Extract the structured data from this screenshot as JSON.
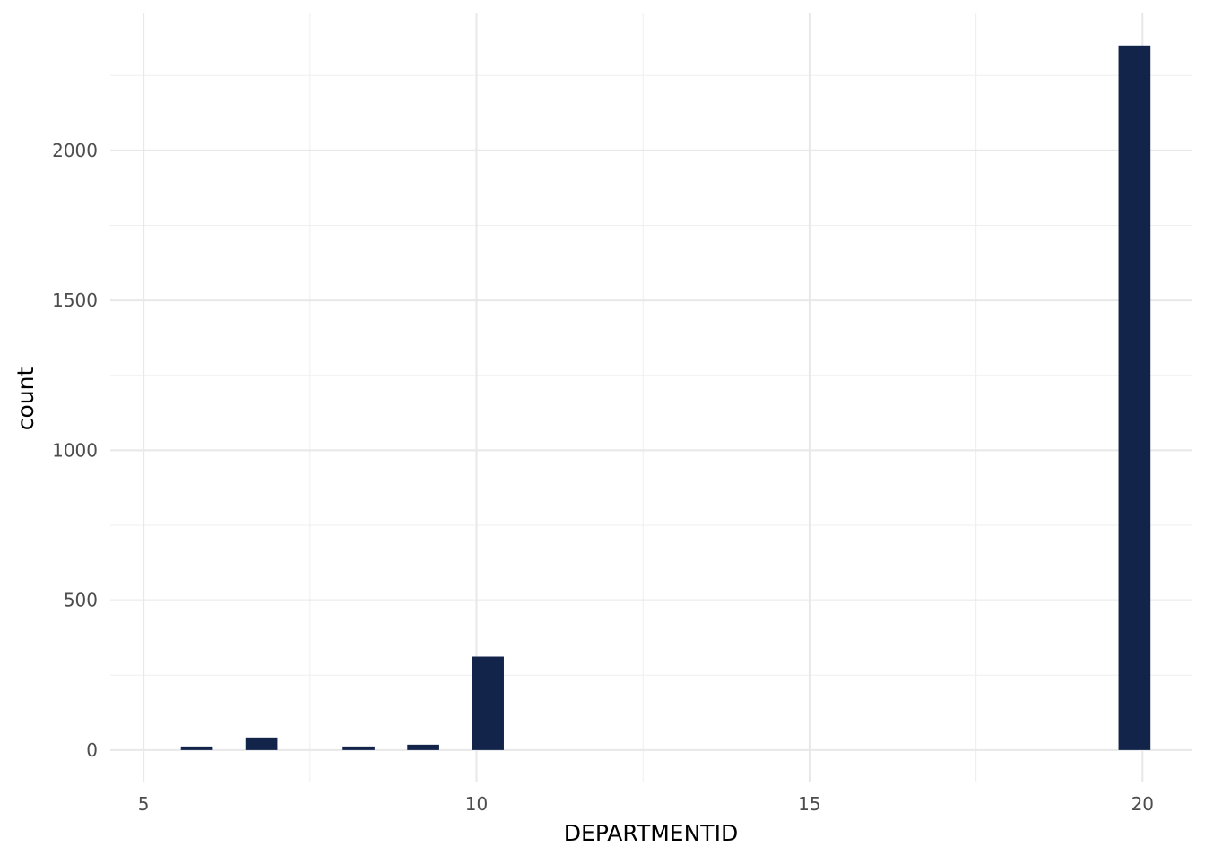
{
  "chart_data": {
    "type": "bar",
    "title": "",
    "xlabel": "DEPARTMENTID",
    "ylabel": "count",
    "xlim": [
      4.5,
      20.75
    ],
    "ylim": [
      -105,
      2460
    ],
    "x_ticks": [
      5,
      10,
      15,
      20
    ],
    "x_tick_labels": [
      "5",
      "10",
      "15",
      "20"
    ],
    "y_ticks": [
      0,
      500,
      1000,
      1500,
      2000
    ],
    "y_tick_labels": [
      "0",
      "500",
      "1000",
      "1500",
      "2000"
    ],
    "grid": true,
    "legend": "none",
    "bar_color": "#13244a",
    "bars": [
      {
        "x_start": 5.56,
        "x_end": 6.04,
        "count": 12
      },
      {
        "x_start": 6.53,
        "x_end": 7.01,
        "count": 42
      },
      {
        "x_start": 7.99,
        "x_end": 8.47,
        "count": 12
      },
      {
        "x_start": 8.96,
        "x_end": 9.44,
        "count": 18
      },
      {
        "x_start": 9.93,
        "x_end": 10.41,
        "count": 312
      },
      {
        "x_start": 19.64,
        "x_end": 20.12,
        "count": 2350
      }
    ]
  }
}
